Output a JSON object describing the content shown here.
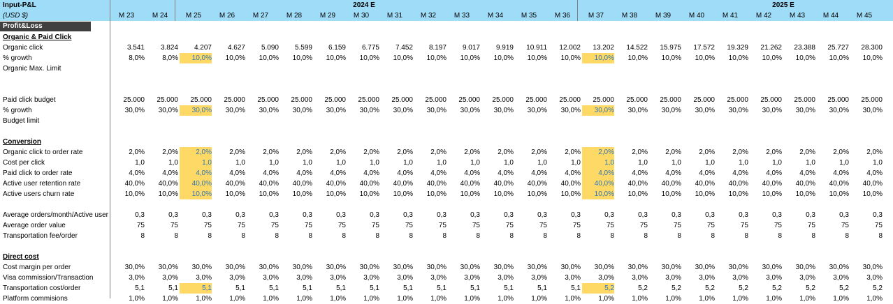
{
  "sheet": {
    "title": "Input-P&L",
    "currency": "(USD $)",
    "section_header": "Profit&Loss"
  },
  "years": [
    "2024 E",
    "2025 E"
  ],
  "months": [
    "M 23",
    "M 24",
    "M 25",
    "M 26",
    "M 27",
    "M 28",
    "M 29",
    "M 30",
    "M 31",
    "M 32",
    "M 33",
    "M 34",
    "M 35",
    "M 36",
    "M 37",
    "M 38",
    "M 39",
    "M 40",
    "M 41",
    "M 42",
    "M 43",
    "M 44",
    "M 45"
  ],
  "highlight_months": [
    2,
    14
  ],
  "colors": {
    "header_bg": "#9fdcf7",
    "section_bar": "#404040",
    "highlight": "#ffd966",
    "highlight_text": "#2e75b6"
  },
  "rows": [
    {
      "type": "section",
      "label": "Organic & Paid Click"
    },
    {
      "type": "data",
      "label": "Organic click",
      "values": [
        "3.541",
        "3.824",
        "4.207",
        "4.627",
        "5.090",
        "5.599",
        "6.159",
        "6.775",
        "7.452",
        "8.197",
        "9.017",
        "9.919",
        "10.911",
        "12.002",
        "13.202",
        "14.522",
        "15.975",
        "17.572",
        "19.329",
        "21.262",
        "23.388",
        "25.727",
        "28.300"
      ]
    },
    {
      "type": "data",
      "label": "% growth",
      "values": [
        "8,0%",
        "8,0%",
        "10,0%",
        "10,0%",
        "10,0%",
        "10,0%",
        "10,0%",
        "10,0%",
        "10,0%",
        "10,0%",
        "10,0%",
        "10,0%",
        "10,0%",
        "10,0%",
        "10,0%",
        "10,0%",
        "10,0%",
        "10,0%",
        "10,0%",
        "10,0%",
        "10,0%",
        "10,0%",
        "10,0%"
      ],
      "hl": true
    },
    {
      "type": "data",
      "label": "Organic Max. Limit",
      "values": []
    },
    {
      "type": "blank"
    },
    {
      "type": "blank"
    },
    {
      "type": "data",
      "label": "Paid click budget",
      "values": [
        "25.000",
        "25.000",
        "25.000",
        "25.000",
        "25.000",
        "25.000",
        "25.000",
        "25.000",
        "25.000",
        "25.000",
        "25.000",
        "25.000",
        "25.000",
        "25.000",
        "25.000",
        "25.000",
        "25.000",
        "25.000",
        "25.000",
        "25.000",
        "25.000",
        "25.000",
        "25.000"
      ]
    },
    {
      "type": "data",
      "label": "% growth",
      "values": [
        "30,0%",
        "30,0%",
        "30,0%",
        "30,0%",
        "30,0%",
        "30,0%",
        "30,0%",
        "30,0%",
        "30,0%",
        "30,0%",
        "30,0%",
        "30,0%",
        "30,0%",
        "30,0%",
        "30,0%",
        "30,0%",
        "30,0%",
        "30,0%",
        "30,0%",
        "30,0%",
        "30,0%",
        "30,0%",
        "30,0%"
      ],
      "hl": true
    },
    {
      "type": "data",
      "label": "Budget limit",
      "values": []
    },
    {
      "type": "blank"
    },
    {
      "type": "section",
      "label": "Conversion"
    },
    {
      "type": "data",
      "label": "Organic click to order rate",
      "values": [
        "2,0%",
        "2,0%",
        "2,0%",
        "2,0%",
        "2,0%",
        "2,0%",
        "2,0%",
        "2,0%",
        "2,0%",
        "2,0%",
        "2,0%",
        "2,0%",
        "2,0%",
        "2,0%",
        "2,0%",
        "2,0%",
        "2,0%",
        "2,0%",
        "2,0%",
        "2,0%",
        "2,0%",
        "2,0%",
        "2,0%"
      ],
      "hl": true
    },
    {
      "type": "data",
      "label": "Cost per click",
      "values": [
        "1,0",
        "1,0",
        "1,0",
        "1,0",
        "1,0",
        "1,0",
        "1,0",
        "1,0",
        "1,0",
        "1,0",
        "1,0",
        "1,0",
        "1,0",
        "1,0",
        "1,0",
        "1,0",
        "1,0",
        "1,0",
        "1,0",
        "1,0",
        "1,0",
        "1,0",
        "1,0"
      ],
      "hl": true
    },
    {
      "type": "data",
      "label": "Paid click to order rate",
      "values": [
        "4,0%",
        "4,0%",
        "4,0%",
        "4,0%",
        "4,0%",
        "4,0%",
        "4,0%",
        "4,0%",
        "4,0%",
        "4,0%",
        "4,0%",
        "4,0%",
        "4,0%",
        "4,0%",
        "4,0%",
        "4,0%",
        "4,0%",
        "4,0%",
        "4,0%",
        "4,0%",
        "4,0%",
        "4,0%",
        "4,0%"
      ],
      "hl": true
    },
    {
      "type": "data",
      "label": "Active user retention rate",
      "values": [
        "40,0%",
        "40,0%",
        "40,0%",
        "40,0%",
        "40,0%",
        "40,0%",
        "40,0%",
        "40,0%",
        "40,0%",
        "40,0%",
        "40,0%",
        "40,0%",
        "40,0%",
        "40,0%",
        "40,0%",
        "40,0%",
        "40,0%",
        "40,0%",
        "40,0%",
        "40,0%",
        "40,0%",
        "40,0%",
        "40,0%"
      ],
      "hl": true
    },
    {
      "type": "data",
      "label": "Active users churn rate",
      "values": [
        "10,0%",
        "10,0%",
        "10,0%",
        "10,0%",
        "10,0%",
        "10,0%",
        "10,0%",
        "10,0%",
        "10,0%",
        "10,0%",
        "10,0%",
        "10,0%",
        "10,0%",
        "10,0%",
        "10,0%",
        "10,0%",
        "10,0%",
        "10,0%",
        "10,0%",
        "10,0%",
        "10,0%",
        "10,0%",
        "10,0%"
      ],
      "hl": true
    },
    {
      "type": "blank"
    },
    {
      "type": "data",
      "label": "Average orders/month/Active user",
      "values": [
        "0,3",
        "0,3",
        "0,3",
        "0,3",
        "0,3",
        "0,3",
        "0,3",
        "0,3",
        "0,3",
        "0,3",
        "0,3",
        "0,3",
        "0,3",
        "0,3",
        "0,3",
        "0,3",
        "0,3",
        "0,3",
        "0,3",
        "0,3",
        "0,3",
        "0,3",
        "0,3"
      ]
    },
    {
      "type": "data",
      "label": "Average order value",
      "values": [
        "75",
        "75",
        "75",
        "75",
        "75",
        "75",
        "75",
        "75",
        "75",
        "75",
        "75",
        "75",
        "75",
        "75",
        "75",
        "75",
        "75",
        "75",
        "75",
        "75",
        "75",
        "75",
        "75"
      ]
    },
    {
      "type": "data",
      "label": "Transportation fee/order",
      "values": [
        "8",
        "8",
        "8",
        "8",
        "8",
        "8",
        "8",
        "8",
        "8",
        "8",
        "8",
        "8",
        "8",
        "8",
        "8",
        "8",
        "8",
        "8",
        "8",
        "8",
        "8",
        "8",
        "8"
      ]
    },
    {
      "type": "blank"
    },
    {
      "type": "section",
      "label": "Direct cost"
    },
    {
      "type": "data",
      "label": "Cost margin per order",
      "values": [
        "30,0%",
        "30,0%",
        "30,0%",
        "30,0%",
        "30,0%",
        "30,0%",
        "30,0%",
        "30,0%",
        "30,0%",
        "30,0%",
        "30,0%",
        "30,0%",
        "30,0%",
        "30,0%",
        "30,0%",
        "30,0%",
        "30,0%",
        "30,0%",
        "30,0%",
        "30,0%",
        "30,0%",
        "30,0%",
        "30,0%"
      ]
    },
    {
      "type": "data",
      "label": "Visa commission/Transaction",
      "values": [
        "3,0%",
        "3,0%",
        "3,0%",
        "3,0%",
        "3,0%",
        "3,0%",
        "3,0%",
        "3,0%",
        "3,0%",
        "3,0%",
        "3,0%",
        "3,0%",
        "3,0%",
        "3,0%",
        "3,0%",
        "3,0%",
        "3,0%",
        "3,0%",
        "3,0%",
        "3,0%",
        "3,0%",
        "3,0%",
        "3,0%"
      ]
    },
    {
      "type": "data",
      "label": "Transportation cost/order",
      "values": [
        "5,1",
        "5,1",
        "5,1",
        "5,1",
        "5,1",
        "5,1",
        "5,1",
        "5,1",
        "5,1",
        "5,1",
        "5,1",
        "5,1",
        "5,1",
        "5,1",
        "5,2",
        "5,2",
        "5,2",
        "5,2",
        "5,2",
        "5,2",
        "5,2",
        "5,2",
        "5,2"
      ],
      "hl": true
    },
    {
      "type": "data",
      "label": "Platform commisions",
      "values": [
        "1,0%",
        "1,0%",
        "1,0%",
        "1,0%",
        "1,0%",
        "1,0%",
        "1,0%",
        "1,0%",
        "1,0%",
        "1,0%",
        "1,0%",
        "1,0%",
        "1,0%",
        "1,0%",
        "1,0%",
        "1,0%",
        "1,0%",
        "1,0%",
        "1,0%",
        "1,0%",
        "1,0%",
        "1,0%",
        "1,0%"
      ]
    }
  ]
}
